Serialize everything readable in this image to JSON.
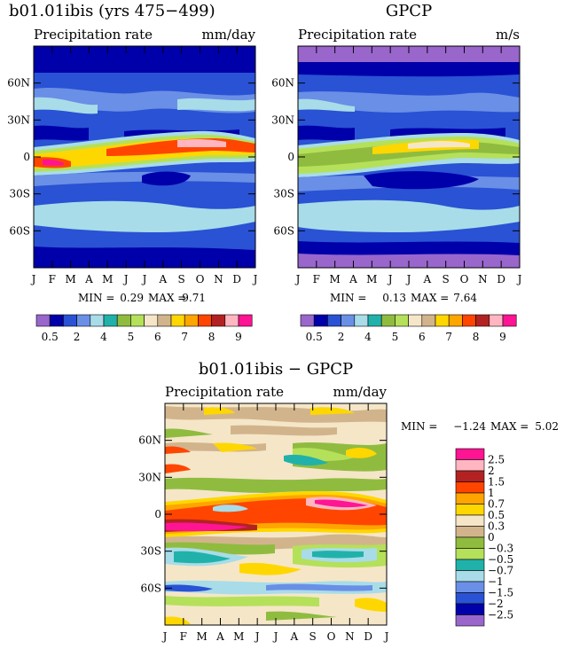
{
  "chart_data": [
    {
      "type": "heatmap",
      "title": "b01.01ibis (yrs 475−499)",
      "subtitle_left": "Precipitation rate",
      "subtitle_right": "mm/day",
      "x_tick_labels": [
        "J",
        "F",
        "M",
        "A",
        "M",
        "J",
        "J",
        "A",
        "S",
        "O",
        "N",
        "D",
        "J"
      ],
      "y_tick_labels": [
        "60N",
        "30N",
        "0",
        "30S",
        "60S"
      ],
      "y_ticks_deg": [
        60,
        30,
        0,
        -30,
        -60
      ],
      "ylim": [
        -90,
        90
      ],
      "min_max_label": "MIN =",
      "min_value": "0.29",
      "max_label": "MAX =",
      "max_value": "9.71",
      "colorbar_labels": [
        "0.5",
        "2",
        "4",
        "5",
        "6",
        "7",
        "8",
        "9"
      ],
      "colors": [
        "#9966cc",
        "#0000aa",
        "#2a52d4",
        "#6a8fe6",
        "#a8dce8",
        "#20b2aa",
        "#8fbc3f",
        "#b5e05a",
        "#f5e6c8",
        "#d2b48c",
        "#ffd700",
        "#ffa500",
        "#ff4500",
        "#b22222",
        "#ffb6c1",
        "#ff1493"
      ]
    },
    {
      "type": "heatmap",
      "title": "GPCP",
      "subtitle_left": "Precipitation rate",
      "subtitle_right": "m/s",
      "x_tick_labels": [
        "J",
        "F",
        "M",
        "A",
        "M",
        "J",
        "J",
        "A",
        "S",
        "O",
        "N",
        "D",
        "J"
      ],
      "y_tick_labels": [
        "60N",
        "30N",
        "0",
        "30S",
        "60S"
      ],
      "y_ticks_deg": [
        60,
        30,
        0,
        -30,
        -60
      ],
      "ylim": [
        -90,
        90
      ],
      "min_max_label": "MIN =",
      "min_value": "0.13",
      "max_label": "MAX =",
      "max_value": "7.64",
      "colorbar_labels": [
        "0.5",
        "2",
        "4",
        "5",
        "6",
        "7",
        "8",
        "9"
      ]
    },
    {
      "type": "heatmap",
      "title": "b01.01ibis − GPCP",
      "subtitle_left": "Precipitation rate",
      "subtitle_right": "mm/day",
      "x_tick_labels": [
        "J",
        "F",
        "M",
        "A",
        "M",
        "J",
        "J",
        "A",
        "S",
        "O",
        "N",
        "D",
        "J"
      ],
      "y_tick_labels": [
        "60N",
        "30N",
        "0",
        "30S",
        "60S"
      ],
      "y_ticks_deg": [
        60,
        30,
        0,
        -30,
        -60
      ],
      "ylim": [
        -90,
        90
      ],
      "min_max_label": "MIN =",
      "min_value": "−1.24",
      "max_label": "MAX =",
      "max_value": "5.02",
      "colorbar_labels": [
        "2.5",
        "2",
        "1.5",
        "1",
        "0.7",
        "0.5",
        "0.3",
        "0",
        "−0.3",
        "−0.5",
        "−0.7",
        "−1",
        "−1.5",
        "−2",
        "−2.5"
      ],
      "colors": [
        "#ff1493",
        "#ffb6c1",
        "#b22222",
        "#ff4500",
        "#ffa500",
        "#ffd700",
        "#f5e6c8",
        "#d2b48c",
        "#8fbc3f",
        "#b5e05a",
        "#20b2aa",
        "#a8dce8",
        "#6a8fe6",
        "#2a52d4",
        "#0000aa",
        "#9966cc"
      ]
    }
  ]
}
